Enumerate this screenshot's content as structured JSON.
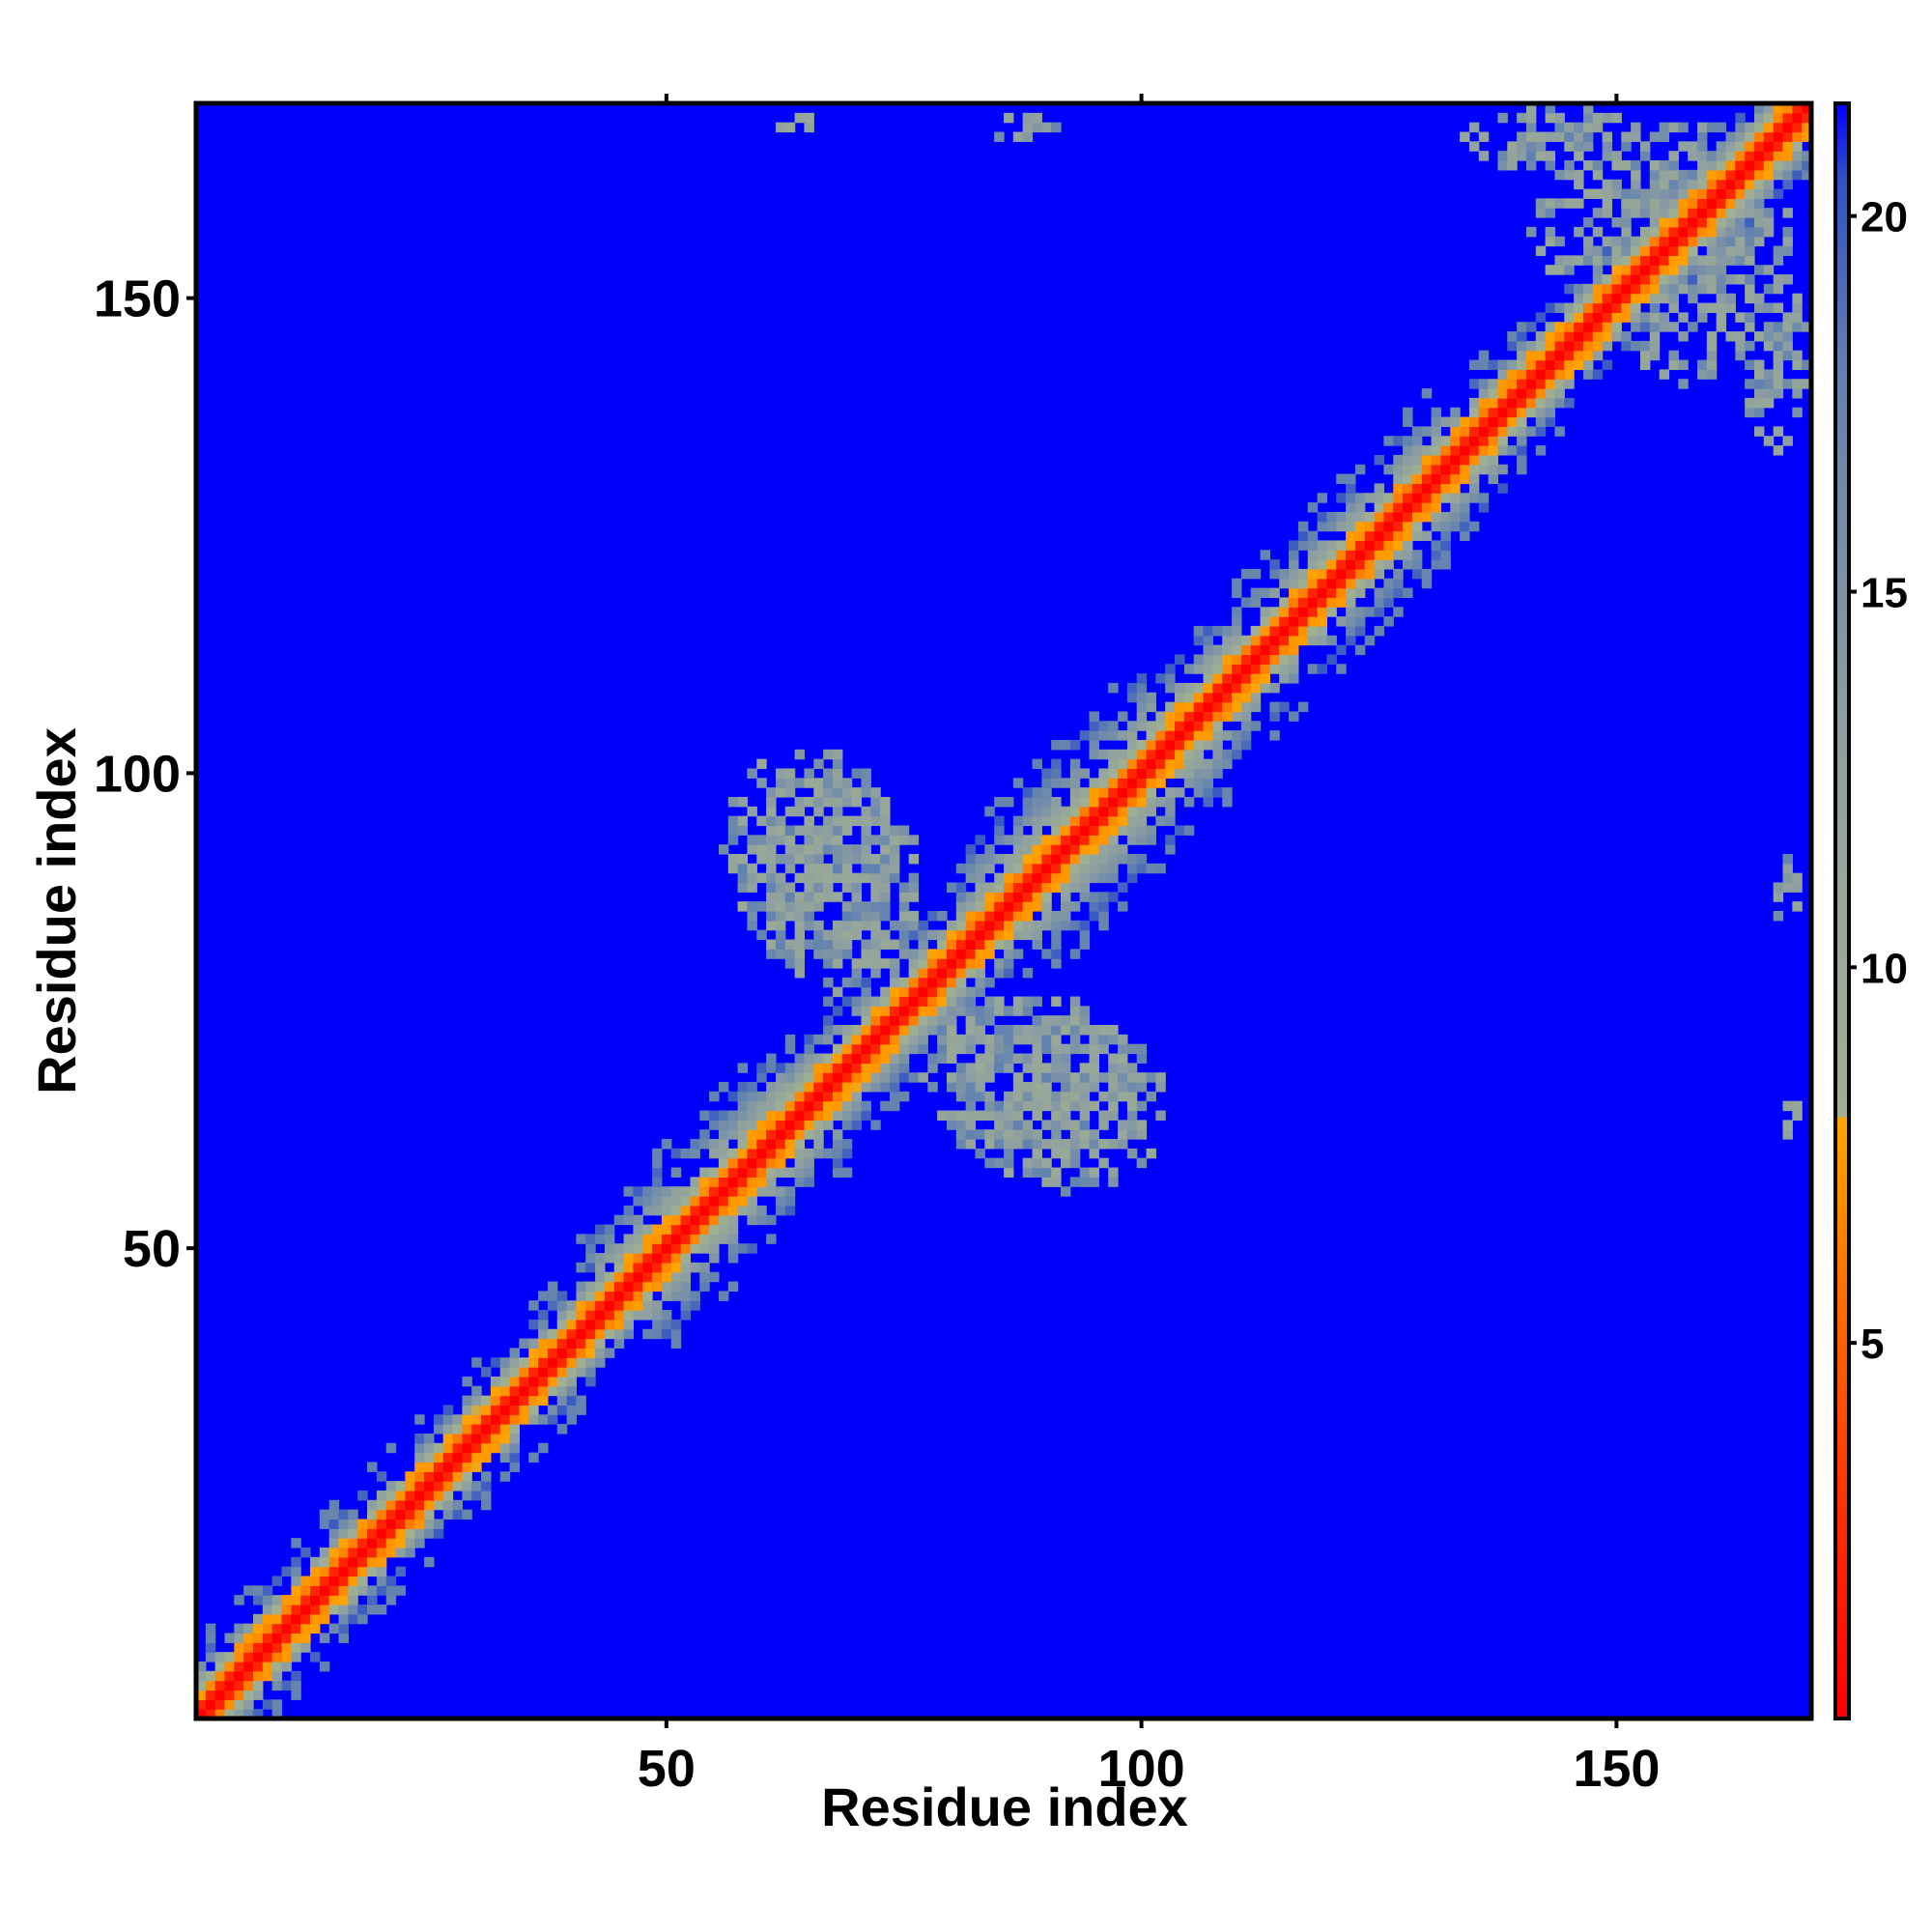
{
  "chart_data": {
    "type": "heatmap",
    "title": "",
    "xlabel": "Residue index",
    "ylabel": "Residue index",
    "n_residues": 170,
    "xlim": [
      1,
      170
    ],
    "ylim": [
      1,
      170
    ],
    "x_ticks": [
      50,
      100,
      150
    ],
    "y_ticks": [
      50,
      100,
      150
    ],
    "colorbar": {
      "range": [
        0,
        21.5
      ],
      "ticks": [
        5,
        10,
        15,
        20
      ],
      "stops": [
        {
          "value": 0,
          "color": "#ff0000"
        },
        {
          "value": 2.5,
          "color": "#ff2a00"
        },
        {
          "value": 5,
          "color": "#ff6000"
        },
        {
          "value": 8,
          "color": "#ffa500"
        },
        {
          "value": 8.01,
          "color": "#a0b090"
        },
        {
          "value": 13,
          "color": "#8fa0a0"
        },
        {
          "value": 18,
          "color": "#6080b0"
        },
        {
          "value": 20.5,
          "color": "#3050c8"
        },
        {
          "value": 21.5,
          "color": "#0000ff"
        }
      ]
    },
    "background_color": "#0000ff",
    "description_of_values": "Symmetric residue-residue distance map; values ~0 on the diagonal rising to >=21.5 (saturated blue) far from the diagonal.",
    "diagonal_band": {
      "core_halfwidth": 1,
      "orange_halfwidth": 3,
      "gray_halfwidth_by_segment": [
        {
          "from": 1,
          "to": 45,
          "halfwidth": 6
        },
        {
          "from": 45,
          "to": 65,
          "halfwidth": 9
        },
        {
          "from": 65,
          "to": 85,
          "halfwidth": 7
        },
        {
          "from": 85,
          "to": 105,
          "halfwidth": 10
        },
        {
          "from": 105,
          "to": 135,
          "halfwidth": 8
        },
        {
          "from": 135,
          "to": 170,
          "halfwidth": 6
        }
      ]
    },
    "off_diagonal_contact_patches": [
      {
        "center_x": 68,
        "center_y": 88,
        "radius_x": 9,
        "radius_y": 12,
        "density": 0.55
      },
      {
        "center_x": 92,
        "center_y": 65,
        "radius_x": 11,
        "radius_y": 9,
        "density": 0.55
      },
      {
        "center_x": 157,
        "center_y": 155,
        "radius_x": 10,
        "radius_y": 14,
        "density": 0.45
      },
      {
        "center_x": 143,
        "center_y": 167,
        "radius_x": 9,
        "radius_y": 4,
        "density": 0.4
      },
      {
        "center_x": 167,
        "center_y": 145,
        "radius_x": 4,
        "radius_y": 9,
        "density": 0.4
      },
      {
        "center_x": 63,
        "center_y": 168,
        "radius_x": 2,
        "radius_y": 1,
        "density": 0.3
      },
      {
        "center_x": 87,
        "center_y": 168,
        "radius_x": 3,
        "radius_y": 2,
        "density": 0.3
      },
      {
        "center_x": 168,
        "center_y": 88,
        "radius_x": 2,
        "radius_y": 3,
        "density": 0.3
      },
      {
        "center_x": 168,
        "center_y": 64,
        "radius_x": 2,
        "radius_y": 2,
        "density": 0.3
      }
    ]
  }
}
